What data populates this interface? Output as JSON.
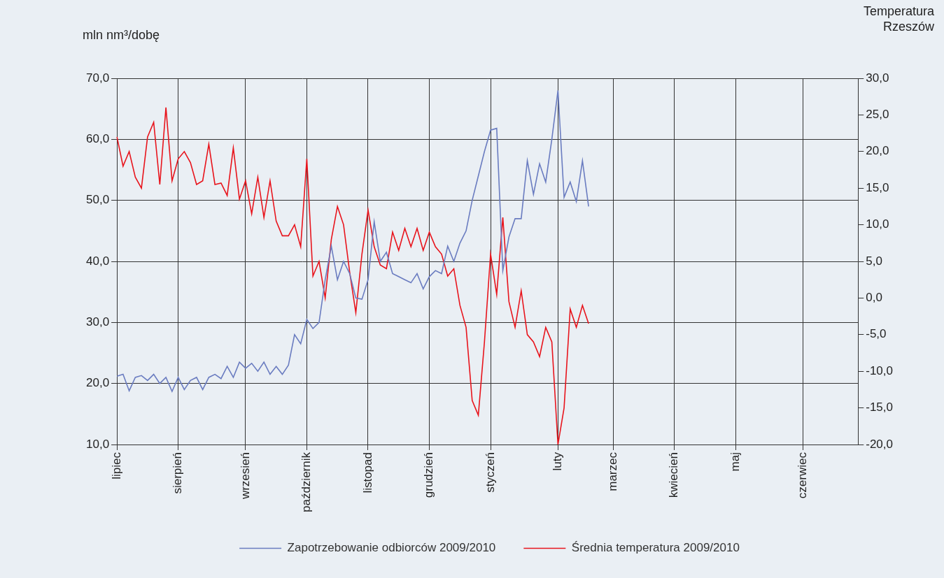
{
  "chart_data": {
    "type": "line",
    "y_label": "mln nm³/dobę",
    "y2_label": "Temperatura Rzeszów",
    "categories": [
      "lipiec",
      null,
      null,
      null,
      null,
      null,
      null,
      null,
      null,
      null,
      "sierpień",
      null,
      null,
      null,
      null,
      null,
      null,
      null,
      null,
      null,
      null,
      "wrzesień",
      null,
      null,
      null,
      null,
      null,
      null,
      null,
      null,
      null,
      "październik",
      null,
      null,
      null,
      null,
      null,
      null,
      null,
      null,
      null,
      "listopad",
      null,
      null,
      null,
      null,
      null,
      null,
      null,
      null,
      null,
      "grudzień",
      null,
      null,
      null,
      null,
      null,
      null,
      null,
      null,
      null,
      "styczeń",
      null,
      null,
      null,
      null,
      null,
      null,
      null,
      null,
      null,
      null,
      "luty",
      null,
      null,
      null,
      null,
      null,
      null,
      null,
      null,
      "marzec",
      null,
      null,
      null,
      null,
      null,
      null,
      null,
      null,
      null,
      "kwiecień",
      null,
      null,
      null,
      null,
      null,
      null,
      null,
      null,
      null,
      "maj",
      null,
      null,
      null,
      null,
      null,
      null,
      null,
      null,
      null,
      null,
      "czerwiec",
      null,
      null,
      null,
      null,
      null,
      null,
      null,
      null,
      null
    ],
    "series": [
      {
        "name": "Zapotrzebowanie odbiorców 2009/2010",
        "color": "#6a7cc0",
        "axis": "y",
        "values": [
          21.2,
          21.5,
          18.8,
          21,
          21.3,
          20.5,
          21.5,
          20,
          21,
          18.7,
          21,
          19,
          20.5,
          21,
          19,
          21,
          21.5,
          20.8,
          22.8,
          21,
          23.5,
          22.5,
          23.3,
          22,
          23.5,
          21.5,
          22.8,
          21.5,
          23,
          28,
          26.5,
          30.5,
          29,
          30,
          37,
          42.5,
          37,
          40,
          38,
          34,
          33.8,
          37,
          46.5,
          40,
          41.5,
          38,
          37.5,
          37,
          36.5,
          38,
          35.5,
          37.5,
          38.5,
          38,
          42.5,
          40,
          43,
          45,
          50,
          54,
          58,
          61.5,
          61.8,
          38.5,
          44,
          47,
          47,
          56.5,
          51,
          56,
          53,
          60,
          68,
          50.5,
          53,
          49.8,
          56.5,
          49,
          null,
          null,
          null,
          null,
          null,
          null,
          null,
          null,
          null,
          null,
          null,
          null,
          null,
          null,
          null,
          null,
          null,
          null,
          null,
          null,
          null,
          null,
          null,
          null,
          null,
          null,
          null,
          null,
          null,
          null,
          null,
          null,
          null,
          null,
          null,
          null,
          null,
          null,
          null,
          null,
          null,
          null,
          null,
          null
        ]
      },
      {
        "name": "Średnia temperatura 2009/2010",
        "color": "#e8141c",
        "axis": "y2",
        "values": [
          22,
          18,
          20,
          16.5,
          15,
          22,
          24,
          15.5,
          26,
          16,
          19,
          20,
          18.5,
          15.5,
          16,
          21,
          15.5,
          15.7,
          14,
          20.5,
          13.5,
          16,
          11.5,
          16.5,
          11,
          16,
          10.5,
          8.5,
          8.5,
          10,
          7,
          19,
          3,
          5,
          0,
          8,
          12.5,
          10,
          3.5,
          -2,
          6,
          12,
          7,
          4.5,
          4,
          9,
          6.5,
          9.5,
          7,
          9.5,
          6.5,
          9,
          7,
          6,
          3,
          4,
          -1,
          -4,
          -14,
          -16,
          -6,
          6,
          0.5,
          11,
          -0.5,
          -4,
          1,
          -5,
          -6,
          -8,
          -4,
          -6,
          -20,
          -15,
          -1.5,
          -4,
          -1,
          -3.5,
          null,
          null,
          null,
          null,
          null,
          null,
          null,
          null,
          null,
          null,
          null,
          null,
          null,
          null,
          null,
          null,
          null,
          null,
          null,
          null,
          null,
          null,
          null,
          null,
          null,
          null,
          null,
          null,
          null,
          null,
          null,
          null,
          null,
          null,
          null,
          null,
          null,
          null,
          null,
          null,
          null,
          null,
          null,
          null
        ]
      }
    ],
    "ylim": [
      10,
      70
    ],
    "yticks": [
      {
        "value": 10,
        "label": "10,0"
      },
      {
        "value": 20,
        "label": "20,0"
      },
      {
        "value": 30,
        "label": "30,0"
      },
      {
        "value": 40,
        "label": "40,0"
      },
      {
        "value": 50,
        "label": "50,0"
      },
      {
        "value": 60,
        "label": "60,0"
      },
      {
        "value": 70,
        "label": "70,0"
      }
    ],
    "y2lim": [
      -20,
      30
    ],
    "y2ticks": [
      {
        "value": -20,
        "label": "-20,0"
      },
      {
        "value": -15,
        "label": "-15,0"
      },
      {
        "value": -10,
        "label": "-10,0"
      },
      {
        "value": -5,
        "label": "-5,0"
      },
      {
        "value": 0,
        "label": "0,0"
      },
      {
        "value": 5,
        "label": "5,0"
      },
      {
        "value": 10,
        "label": "10,0"
      },
      {
        "value": 15,
        "label": "15,0"
      },
      {
        "value": 20,
        "label": "20,0"
      },
      {
        "value": 25,
        "label": "25,0"
      },
      {
        "value": 30,
        "label": "30,0"
      }
    ],
    "grid": true,
    "legend": "bottom"
  }
}
